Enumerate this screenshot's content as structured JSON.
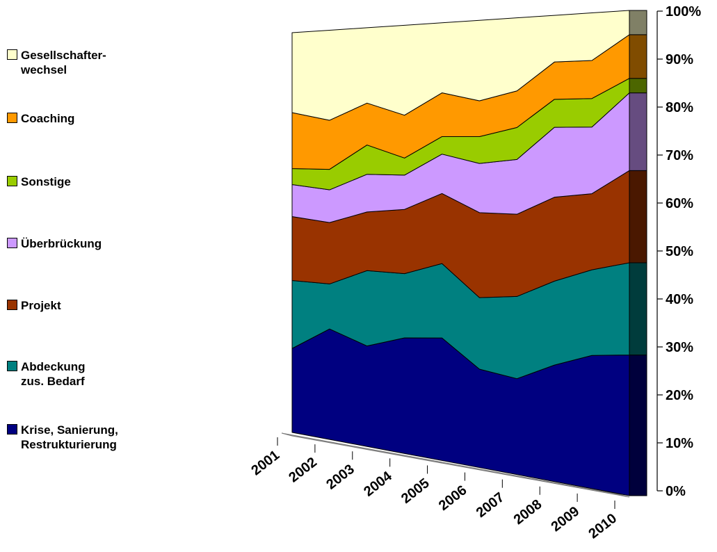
{
  "chart_data": {
    "type": "area",
    "stacked": "100%",
    "three_d": true,
    "categories": [
      "2001",
      "2002",
      "2003",
      "2004",
      "2005",
      "2006",
      "2007",
      "2008",
      "2009",
      "2010"
    ],
    "y_ticks": [
      "0%",
      "10%",
      "20%",
      "30%",
      "40%",
      "50%",
      "60%",
      "70%",
      "80%",
      "90%",
      "100%"
    ],
    "ylim": [
      0,
      100
    ],
    "legend_position": "left",
    "series": [
      {
        "name": "Krise, Sanierung,\nRestrukturierung",
        "color": "#000080",
        "side_color": "#00003c",
        "values": [
          21,
          27,
          24,
          27,
          28,
          22,
          21,
          25,
          28,
          29
        ]
      },
      {
        "name": "Abdeckung\nzus. Bedarf",
        "color": "#008080",
        "side_color": "#003c3c",
        "values": [
          17,
          11,
          18,
          15,
          17,
          16,
          18,
          18,
          18,
          19
        ]
      },
      {
        "name": "Projekt",
        "color": "#993300",
        "side_color": "#4a1800",
        "values": [
          16,
          15,
          14,
          15,
          16,
          19,
          18,
          18,
          16,
          19
        ]
      },
      {
        "name": "Überbrückung",
        "color": "#cc99ff",
        "side_color": "#664c80",
        "values": [
          8,
          8,
          9,
          8,
          9,
          11,
          12,
          15,
          14,
          16
        ]
      },
      {
        "name": "Sonstige",
        "color": "#99cc00",
        "side_color": "#4c6600",
        "values": [
          4,
          5,
          7,
          4,
          4,
          6,
          7,
          6,
          6,
          3
        ]
      },
      {
        "name": "Coaching",
        "color": "#ff9900",
        "side_color": "#804c00",
        "values": [
          14,
          12,
          10,
          10,
          10,
          8,
          8,
          8,
          8,
          9
        ]
      },
      {
        "name": "Gesellschafter-\nwechsel",
        "color": "#ffffcc",
        "side_color": "#808066",
        "values": [
          20,
          22,
          18,
          21,
          16,
          18,
          16,
          10,
          10,
          5
        ]
      }
    ]
  }
}
